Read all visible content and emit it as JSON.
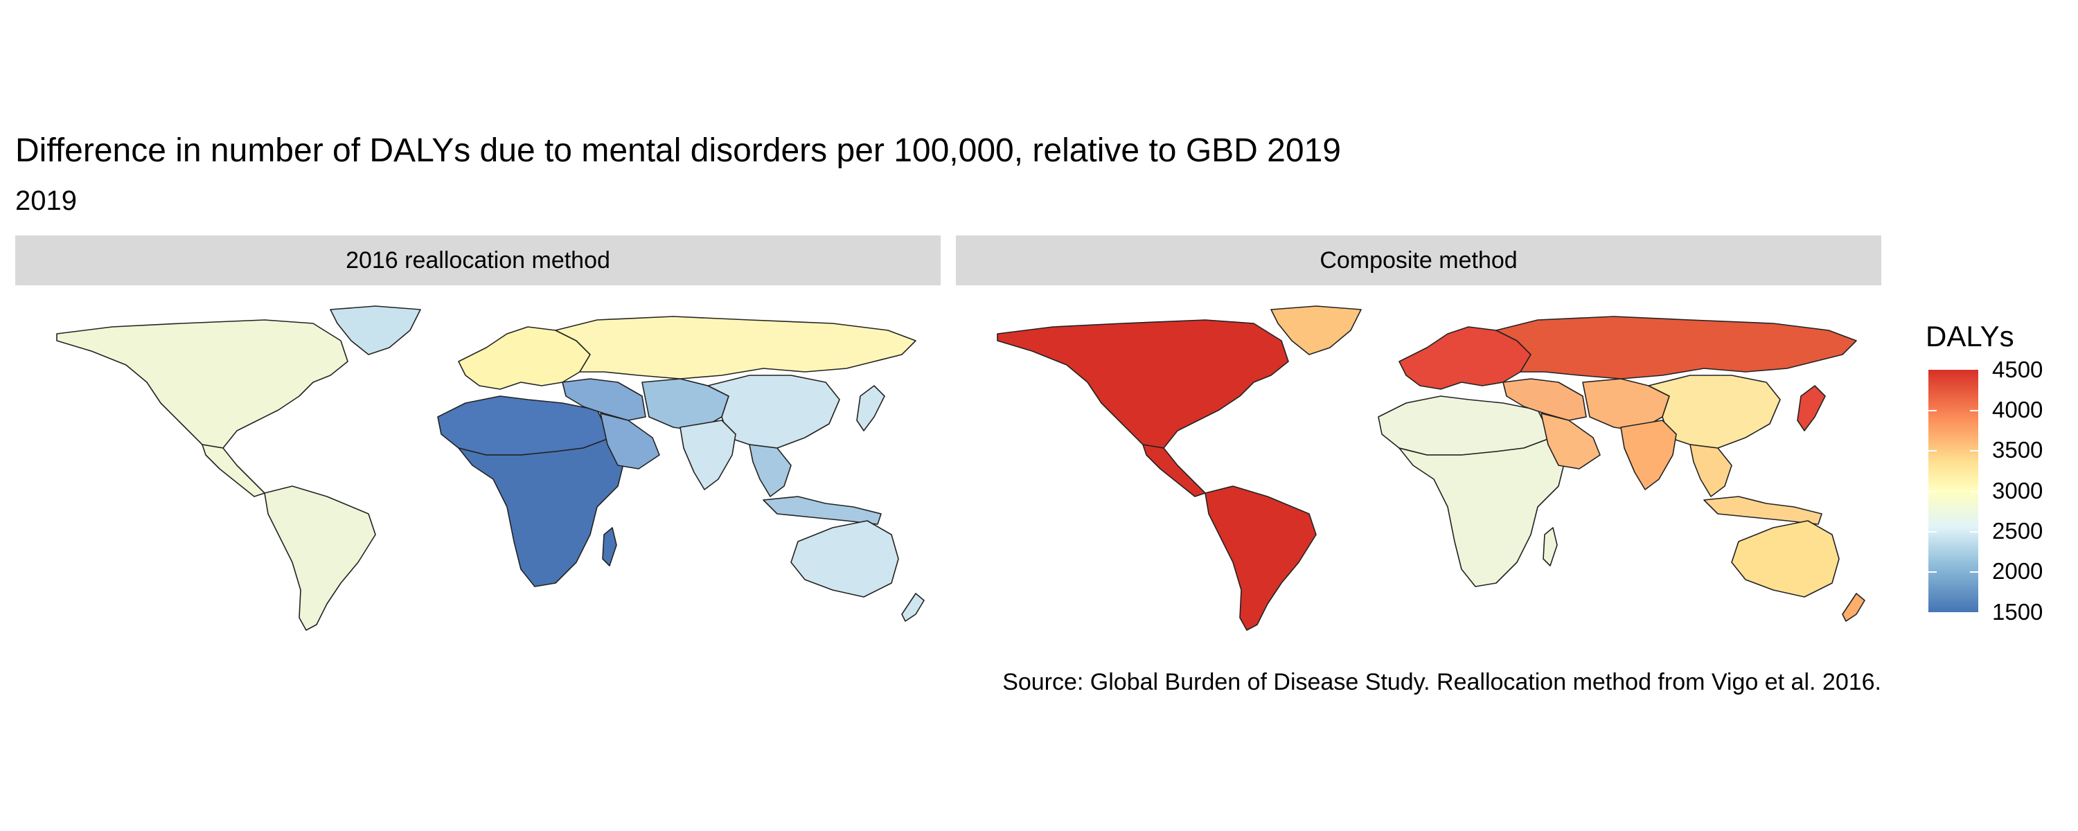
{
  "title": "Difference in number of DALYs due to mental disorders per 100,000, relative to GBD 2019",
  "subtitle": "2019",
  "caption": "Source: Global Burden of Disease Study. Reallocation method from Vigo et al. 2016.",
  "panels": [
    {
      "label": "2016 reallocation method",
      "regions": {
        "north_america": "#f1f7d6",
        "central_america": "#f1f7d6",
        "south_america": "#eef5d8",
        "greenland": "#c9e3ee",
        "europe": "#fdf5b0",
        "russia": "#fdf6b8",
        "middle_east": "#84aad6",
        "arabia": "#84aad6",
        "north_africa": "#4d78b9",
        "sub_saharan_africa": "#4a75b4",
        "madagascar": "#4a75b4",
        "central_asia": "#9ec4e0",
        "china": "#cfe5ef",
        "india": "#cfe5ef",
        "southeast_asia": "#a7c9e2",
        "japan": "#cfe5ef",
        "indonesia": "#a7c9e2",
        "australia": "#cfe5ef",
        "new_zealand": "#cfe5ef"
      }
    },
    {
      "label": "Composite method",
      "regions": {
        "north_america": "#d73027",
        "central_america": "#d73027",
        "south_america": "#d73027",
        "greenland": "#fdc47d",
        "europe": "#e6483a",
        "russia": "#e45a3b",
        "middle_east": "#fbb27a",
        "arabia": "#fcba7e",
        "north_africa": "#eff5dc",
        "sub_saharan_africa": "#eef5da",
        "madagascar": "#eef5da",
        "central_asia": "#fdb67a",
        "china": "#fee7a0",
        "india": "#fdb070",
        "southeast_asia": "#fed48c",
        "japan": "#e6483a",
        "indonesia": "#fed48c",
        "australia": "#fee090",
        "new_zealand": "#fdae6b"
      }
    }
  ],
  "legend": {
    "title": "DALYs",
    "ticks": [
      "4500",
      "4000",
      "3500",
      "3000",
      "2500",
      "2000",
      "1500"
    ],
    "colors": [
      "#4575b4",
      "#91bfdb",
      "#e0f3f8",
      "#ffffbf",
      "#fee090",
      "#fc8d59",
      "#d73027"
    ]
  }
}
